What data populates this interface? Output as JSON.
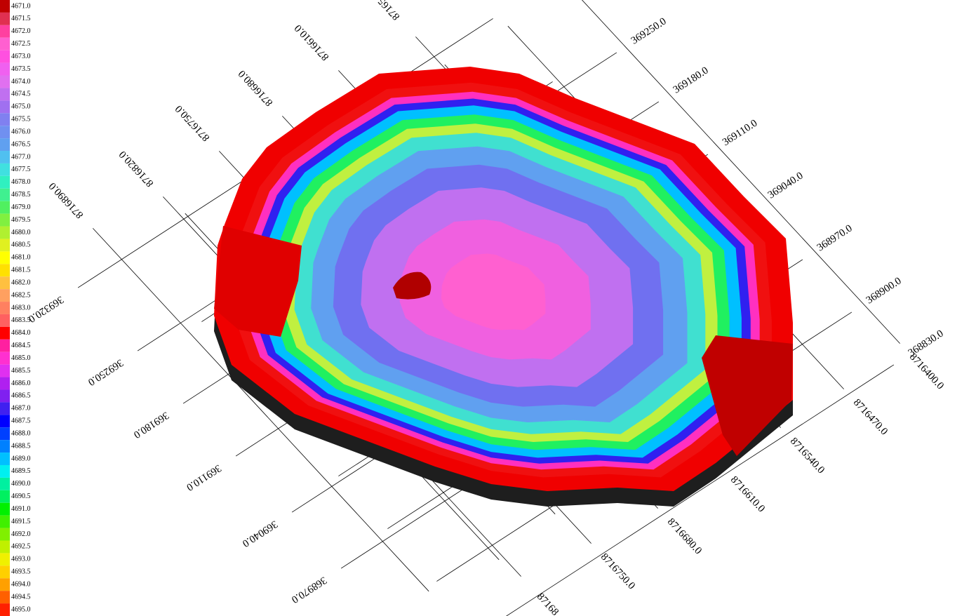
{
  "legend": {
    "entries": [
      {
        "label": "4671.0",
        "color": "#c00000"
      },
      {
        "label": "4671.5",
        "color": "#e03050"
      },
      {
        "label": "4672.0",
        "color": "#ff40a0"
      },
      {
        "label": "4672.5",
        "color": "#ff60d0"
      },
      {
        "label": "4673.0",
        "color": "#ff50e0"
      },
      {
        "label": "4673.5",
        "color": "#f060f0"
      },
      {
        "label": "4674.0",
        "color": "#e070f0"
      },
      {
        "label": "4674.5",
        "color": "#c070f0"
      },
      {
        "label": "4675.0",
        "color": "#a070f0"
      },
      {
        "label": "4675.5",
        "color": "#8080f0"
      },
      {
        "label": "4676.0",
        "color": "#7090f0"
      },
      {
        "label": "4676.5",
        "color": "#60a0f0"
      },
      {
        "label": "4677.0",
        "color": "#50c0f0"
      },
      {
        "label": "4677.5",
        "color": "#40e0e0"
      },
      {
        "label": "4678.0",
        "color": "#30f0c0"
      },
      {
        "label": "4678.5",
        "color": "#40f090"
      },
      {
        "label": "4679.0",
        "color": "#50f060"
      },
      {
        "label": "4679.5",
        "color": "#80f040"
      },
      {
        "label": "4680.0",
        "color": "#b0f030"
      },
      {
        "label": "4680.5",
        "color": "#e0f020"
      },
      {
        "label": "4681.0",
        "color": "#ffff00"
      },
      {
        "label": "4681.5",
        "color": "#ffe000"
      },
      {
        "label": "4682.0",
        "color": "#ffc040"
      },
      {
        "label": "4682.5",
        "color": "#ffa060"
      },
      {
        "label": "4683.0",
        "color": "#ff8060"
      },
      {
        "label": "4683.5",
        "color": "#ff6060"
      },
      {
        "label": "4684.0",
        "color": "#ff0000"
      },
      {
        "label": "4684.5",
        "color": "#ff20a0"
      },
      {
        "label": "4685.0",
        "color": "#ff30d0"
      },
      {
        "label": "4685.5",
        "color": "#e030f0"
      },
      {
        "label": "4686.0",
        "color": "#b020f0"
      },
      {
        "label": "4686.5",
        "color": "#8020f0"
      },
      {
        "label": "4687.0",
        "color": "#4020f0"
      },
      {
        "label": "4687.5",
        "color": "#0000ff"
      },
      {
        "label": "4688.0",
        "color": "#0040ff"
      },
      {
        "label": "4688.5",
        "color": "#0080ff"
      },
      {
        "label": "4689.0",
        "color": "#00c0ff"
      },
      {
        "label": "4689.5",
        "color": "#00f0f0"
      },
      {
        "label": "4690.0",
        "color": "#00f0a0"
      },
      {
        "label": "4690.5",
        "color": "#00f060"
      },
      {
        "label": "4691.0",
        "color": "#00f000"
      },
      {
        "label": "4691.5",
        "color": "#40f000"
      },
      {
        "label": "4692.0",
        "color": "#80f000"
      },
      {
        "label": "4692.5",
        "color": "#c0f000"
      },
      {
        "label": "4693.0",
        "color": "#f0f000"
      },
      {
        "label": "4693.5",
        "color": "#ffd000"
      },
      {
        "label": "4694.0",
        "color": "#ffa000"
      },
      {
        "label": "4694.5",
        "color": "#ff6000"
      },
      {
        "label": "4695.0",
        "color": "#ff2000"
      }
    ]
  },
  "axes": {
    "easting_top": [
      "369250.0",
      "369180.0",
      "369110.0",
      "369040.0",
      "368970.0",
      "368900.0",
      "368830.0"
    ],
    "easting_bottom": [
      "369320.0",
      "369250.0",
      "369180.0",
      "369110.0",
      "369040.0",
      "368970.0"
    ],
    "northing_top": [
      "87165",
      "8716610.0",
      "8716680.0",
      "8716750.0",
      "8716820.0",
      "8716890.0"
    ],
    "northing_bottom": [
      "8716400.0",
      "8716470.0",
      "8716540.0",
      "8716610.0",
      "8716680.0",
      "8716750.0",
      "87168"
    ]
  }
}
